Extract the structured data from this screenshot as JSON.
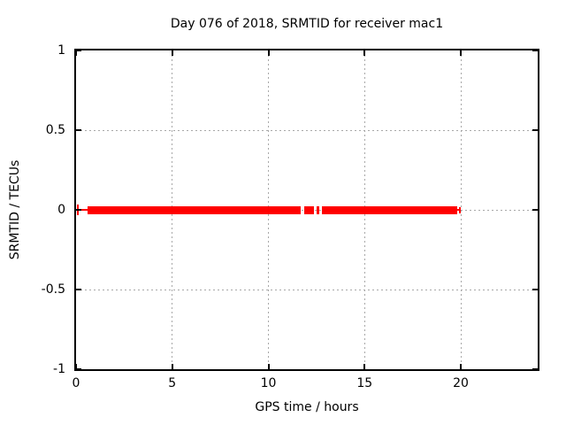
{
  "chart_data": {
    "type": "line",
    "title": "Day 076 of 2018, SRMTID for receiver mac1",
    "xlabel": "GPS time / hours",
    "ylabel": "SRMTID / TECUs",
    "xlim": [
      0,
      24
    ],
    "ylim": [
      -1,
      1
    ],
    "xticks": [
      {
        "value": 0,
        "label": "0"
      },
      {
        "value": 5,
        "label": "5"
      },
      {
        "value": 10,
        "label": "10"
      },
      {
        "value": 15,
        "label": "15"
      },
      {
        "value": 20,
        "label": "20"
      }
    ],
    "yticks": [
      {
        "value": 1,
        "label": "1"
      },
      {
        "value": 0.5,
        "label": "0.5"
      },
      {
        "value": 0,
        "label": "0"
      },
      {
        "value": -0.5,
        "label": "-0.5"
      },
      {
        "value": -1,
        "label": "-1"
      }
    ],
    "grid": true,
    "legend": "none",
    "colors": {
      "series": "#ff0000",
      "grid": "#a8a8a8",
      "border": "#000000",
      "text": "#000000",
      "background": "#ffffff"
    },
    "series": [
      {
        "name": "SRMTID",
        "color": "#ff0000",
        "y_value": 0,
        "band_half_height_tecu": 0.025,
        "band_segments_hours": [
          [
            0.59,
            11.68
          ],
          [
            11.87,
            12.36
          ],
          [
            12.5,
            12.64
          ],
          [
            12.77,
            19.8
          ]
        ],
        "lead_line_hours": [
          0.09,
          0.59
        ],
        "tail_line_hours": [
          19.8,
          19.94
        ],
        "start_errorbar": {
          "hour": 0.09,
          "half_height_tecu": 0.033
        },
        "end_errorbar": {
          "hour": 19.94,
          "half_height_tecu": 0.02
        }
      }
    ]
  }
}
